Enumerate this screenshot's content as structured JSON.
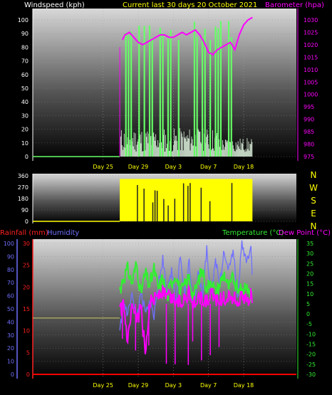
{
  "colors": {
    "wind": "#66ff66",
    "gust": "#ffffff",
    "barometer": "#ff00ff",
    "direction": "#ffff00",
    "rainfall": "#ff0000",
    "humidity": "#7070ff",
    "temperature": "#33ee33",
    "dewpoint": "#ff00ff",
    "title": "#ffff00"
  },
  "chart_data": [
    {
      "type": "line",
      "panel": "wind-barometer",
      "title": "Current last 30 days 20 October 2021",
      "left_axis_label": "Windspeed (kph)",
      "right_axis_label": "Barometer (hpa)",
      "left_ticks": [
        "100",
        "90",
        "80",
        "70",
        "60",
        "50",
        "40",
        "30",
        "20",
        "10",
        "0"
      ],
      "right_ticks": [
        "1030",
        "1025",
        "1020",
        "1015",
        "1010",
        "1005",
        "1000",
        "995",
        "990",
        "985",
        "980",
        "975"
      ],
      "ylim_left": [
        0,
        100
      ],
      "ylim_right": [
        975,
        1032
      ],
      "xlim": [
        0,
        30
      ],
      "x_tick_labels": [
        "Day 25",
        "Day 29",
        "Day 3",
        "Day 7",
        "Day 18"
      ],
      "x_tick_values": [
        8,
        12,
        16,
        20,
        24
      ],
      "series": [
        {
          "key": "barometer",
          "x": [
            10.2,
            10.5,
            11.0,
            11.5,
            12.0,
            12.5,
            13.0,
            13.5,
            14.0,
            14.5,
            15.0,
            15.5,
            16.0,
            16.5,
            17.0,
            17.5,
            18.0,
            18.5,
            19.0,
            19.5,
            20.0,
            20.5,
            21.0,
            21.5,
            22.0,
            22.5,
            23.0,
            23.5,
            24.0,
            24.5,
            25.0
          ],
          "values": [
            1022,
            1024,
            1025,
            1023,
            1021,
            1020,
            1021,
            1022,
            1023,
            1024,
            1024,
            1023,
            1023,
            1024,
            1025,
            1024,
            1025,
            1026,
            1024,
            1021,
            1017,
            1016,
            1018,
            1019,
            1020,
            1021,
            1018,
            1024,
            1028,
            1030,
            1031
          ]
        },
        {
          "key": "wind_avg",
          "x": [
            0,
            9.9,
            10.0,
            10.5,
            11,
            11.5,
            12,
            12.5,
            13,
            13.5,
            14,
            14.5,
            15,
            15.5,
            16,
            16.5,
            17,
            17.5,
            18,
            18.5,
            19,
            19.5,
            20,
            20.5,
            21,
            21.5,
            22,
            22.5,
            23,
            23.5,
            24,
            24.5,
            25
          ],
          "values": [
            0,
            0,
            3,
            5,
            2,
            6,
            4,
            8,
            3,
            5,
            7,
            4,
            9,
            3,
            6,
            5,
            4,
            8,
            3,
            2,
            1,
            4,
            2,
            3,
            5,
            2,
            4,
            3,
            2,
            1,
            3,
            2,
            1
          ]
        }
      ]
    },
    {
      "type": "bar",
      "panel": "wind-direction",
      "left_ticks": [
        "360",
        "270",
        "180",
        "90",
        "0"
      ],
      "ylim": [
        0,
        360
      ],
      "compass_labels": [
        "N",
        "W",
        "S",
        "E",
        "N"
      ],
      "series_name": "Wind direction",
      "x_start": 9.9,
      "x_end": 25,
      "values_summary": "mostly 270-360 with dips to 0"
    },
    {
      "type": "line",
      "panel": "rain-humidity-temperature",
      "rain_axis_label": "Rainfall (mm)",
      "humidity_axis_label": "Humidity",
      "temp_axis_label": "Temperature (°C)",
      "dew_axis_label": "Dew Point (°C)",
      "humidity_ticks": [
        "100",
        "90",
        "80",
        "70",
        "60",
        "50",
        "40",
        "30",
        "20",
        "10",
        "0"
      ],
      "rain_ticks": [
        "30",
        "25",
        "20",
        "15",
        "10",
        "5",
        "0"
      ],
      "temp_ticks": [
        "35",
        "30",
        "25",
        "20",
        "15",
        "10",
        "5",
        "0",
        "-5",
        "-10",
        "-15",
        "-20",
        "-25",
        "-30"
      ],
      "ylim_humidity": [
        0,
        100
      ],
      "ylim_rain": [
        0,
        30
      ],
      "ylim_temp": [
        -30,
        35
      ],
      "x_tick_labels": [
        "Day 25",
        "Day 29",
        "Day 3",
        "Day 7",
        "Day 18"
      ],
      "series": [
        {
          "key": "rainfall",
          "values": [
            0,
            0,
            0,
            0,
            0,
            0
          ]
        },
        {
          "key": "humidity_baseline",
          "x": [
            0,
            9.9
          ],
          "values": [
            43,
            43
          ]
        },
        {
          "key": "humidity",
          "x": [
            9.9,
            10.3,
            10.8,
            11.3,
            11.8,
            12.3,
            12.8,
            13.3,
            13.8,
            14.3,
            14.8,
            15.3,
            15.8,
            16.3,
            16.8,
            17.3,
            17.8,
            18.3,
            18.8,
            19.3,
            19.8,
            20.3,
            20.8,
            21.3,
            21.8,
            22.3,
            22.8,
            23.3,
            23.8,
            24.3,
            24.8,
            25.0
          ],
          "values": [
            30,
            55,
            45,
            60,
            40,
            62,
            48,
            58,
            45,
            70,
            88,
            60,
            80,
            55,
            92,
            62,
            85,
            50,
            78,
            60,
            95,
            58,
            88,
            70,
            95,
            80,
            96,
            60,
            99,
            85,
            98,
            75
          ]
        },
        {
          "key": "temperature",
          "x": [
            9.9,
            10.3,
            10.8,
            11.3,
            11.8,
            12.3,
            12.8,
            13.3,
            13.8,
            14.3,
            14.8,
            15.3,
            15.8,
            16.3,
            16.8,
            17.3,
            17.8,
            18.3,
            18.8,
            19.3,
            19.8,
            20.3,
            20.8,
            21.3,
            21.8,
            22.3,
            22.8,
            23.3,
            23.8,
            24.3,
            24.8,
            25.0
          ],
          "values": [
            12,
            18,
            22,
            15,
            25,
            10,
            20,
            14,
            22,
            12,
            18,
            8,
            16,
            20,
            10,
            14,
            18,
            8,
            16,
            22,
            12,
            18,
            10,
            15,
            20,
            12,
            18,
            14,
            10,
            16,
            8,
            12
          ]
        },
        {
          "key": "dewpoint",
          "x": [
            9.9,
            10.3,
            10.8,
            11.3,
            11.8,
            12.3,
            12.8,
            13.3,
            13.8,
            14.3,
            14.8,
            15.3,
            15.8,
            16.3,
            16.8,
            17.3,
            17.8,
            18.3,
            18.8,
            19.3,
            19.8,
            20.3,
            20.8,
            21.3,
            21.8,
            22.3,
            22.8,
            23.3,
            23.8,
            24.3,
            24.8,
            25.0
          ],
          "values": [
            0,
            5,
            -15,
            3,
            -5,
            4,
            -20,
            6,
            8,
            10,
            11,
            9,
            8,
            7,
            6,
            9,
            10,
            5,
            8,
            7,
            6,
            9,
            8,
            7,
            8,
            9,
            8,
            7,
            8,
            6,
            9,
            8
          ]
        }
      ]
    }
  ]
}
